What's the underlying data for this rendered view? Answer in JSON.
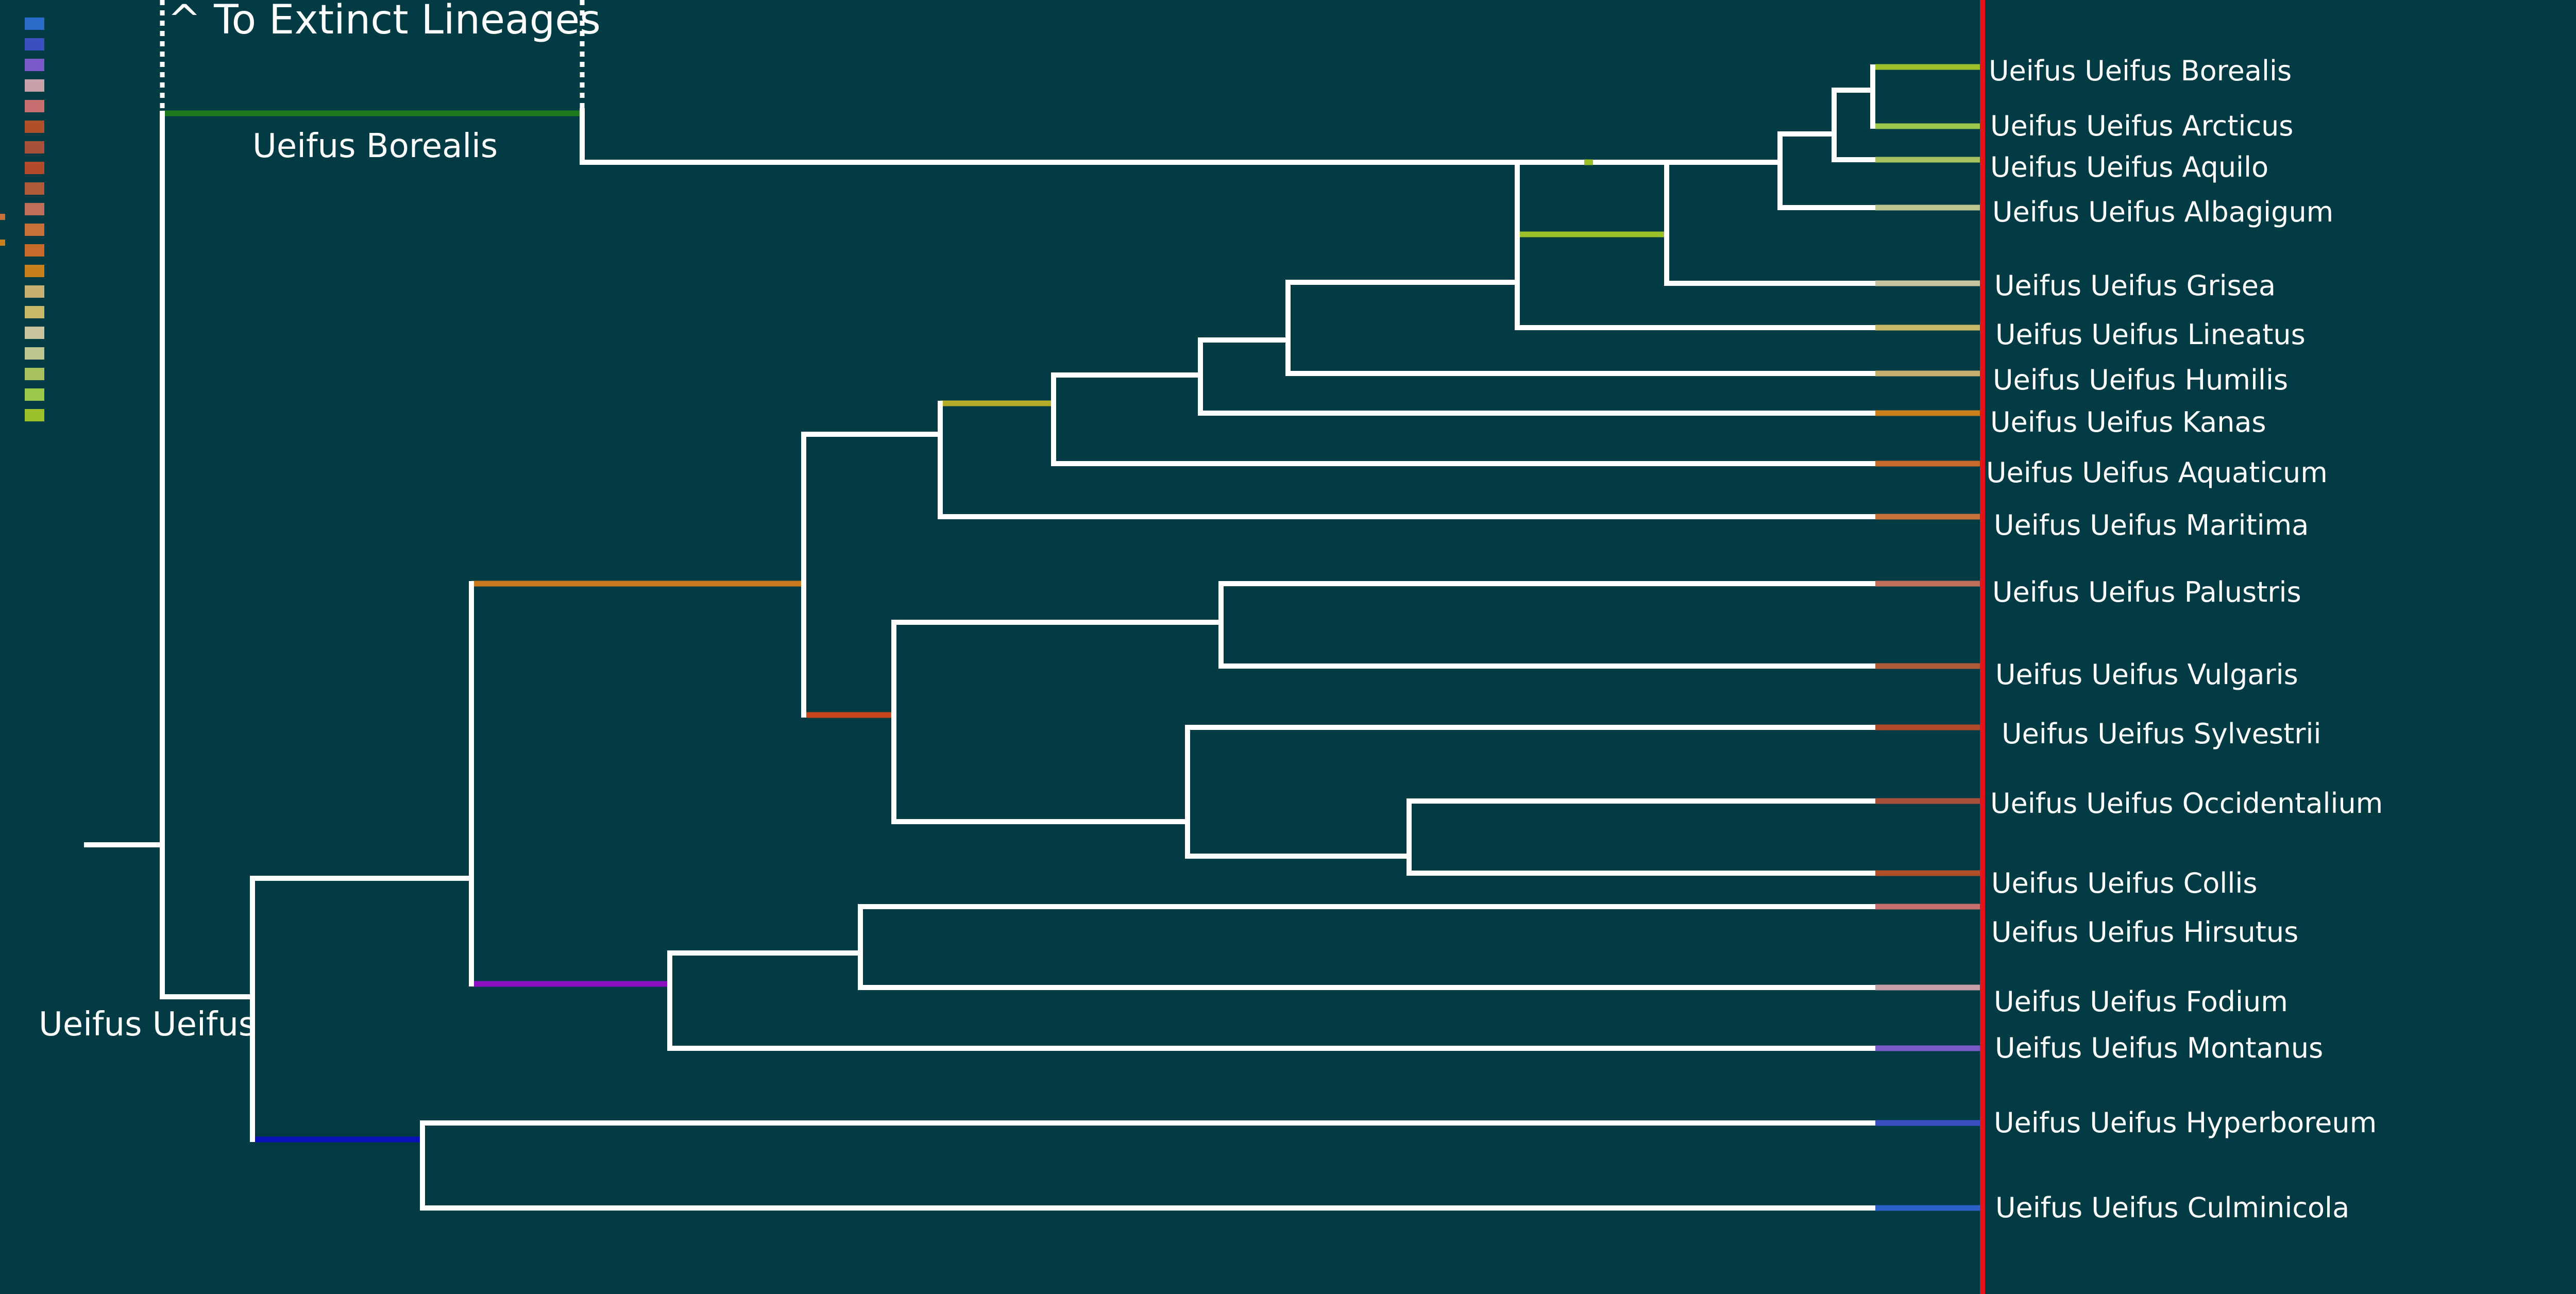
{
  "diagram": {
    "title": "^ To Extinct Lineages",
    "clade_labels": {
      "borealis": "Ueifus Borealis",
      "ueifus": "Ueifus Ueifus"
    },
    "colors": {
      "background": "#023b44",
      "branch": "#ffffff",
      "present_line": "#e5141a",
      "borealis_branch": "#1f7a1f",
      "olive_branch": "#b5ad2a",
      "orange_branch": "#c87a1c",
      "rust_branch": "#c8461c",
      "purple_branch": "#8b10c0",
      "navy_branch": "#0a10b8",
      "lime_branch": "#9bc02a"
    },
    "taxa": [
      {
        "name": "Ueifus Ueifus Borealis",
        "color": "#9bc02a"
      },
      {
        "name": "Ueifus Ueifus Arcticus",
        "color": "#9bc84a"
      },
      {
        "name": "Ueifus Ueifus Aquilo",
        "color": "#a8c260"
      },
      {
        "name": "Ueifus Ueifus Albagigum",
        "color": "#bcc490"
      },
      {
        "name": "Ueifus Ueifus Grisea",
        "color": "#c8c4a0"
      },
      {
        "name": "Ueifus Ueifus Lineatus",
        "color": "#c8b86a"
      },
      {
        "name": "Ueifus Ueifus Humilis",
        "color": "#c8b070"
      },
      {
        "name": "Ueifus Ueifus Kanas",
        "color": "#c8801c"
      },
      {
        "name": "Ueifus Ueifus Aquaticum",
        "color": "#c86a2a"
      },
      {
        "name": "Ueifus Ueifus Maritima",
        "color": "#c8703a"
      },
      {
        "name": "Ueifus Ueifus Palustris",
        "color": "#c0705a"
      },
      {
        "name": "Ueifus Ueifus Vulgaris",
        "color": "#b05a3a"
      },
      {
        "name": "Ueifus Ueifus Sylvestrii",
        "color": "#b04a2a"
      },
      {
        "name": "Ueifus Ueifus Occidentalium",
        "color": "#a8503a"
      },
      {
        "name": "Ueifus Ueifus Collis",
        "color": "#b0502a"
      },
      {
        "name": "Ueifus Ueifus Hirsutus",
        "color": "#c87070"
      },
      {
        "name": "Ueifus Ueifus Fodium",
        "color": "#c8a0a8"
      },
      {
        "name": "Ueifus Ueifus Montanus",
        "color": "#7a5ac8"
      },
      {
        "name": "Ueifus Ueifus Hyperboreum",
        "color": "#3a50c0"
      },
      {
        "name": "Ueifus Ueifus Culminicola",
        "color": "#2a60c8"
      }
    ],
    "legend_swatches": [
      "#2a6ac8",
      "#3a50c0",
      "#7a5ac8",
      "#c8a0a8",
      "#c87070",
      "#b0502a",
      "#a8503a",
      "#b04a2a",
      "#b05a3a",
      "#c0705a",
      "#c8703a",
      "#c86a2a",
      "#c8801c",
      "#c8b070",
      "#c8b86a",
      "#c8c4a0",
      "#bcc490",
      "#a8c260",
      "#9bc84a",
      "#9bc02a"
    ]
  }
}
